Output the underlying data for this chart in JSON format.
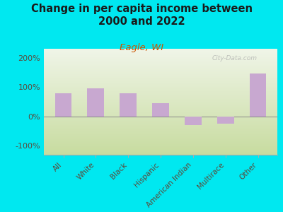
{
  "title": "Change in per capita income between\n2000 and 2022",
  "subtitle": "Eagle, WI",
  "categories": [
    "All",
    "White",
    "Black",
    "Hispanic",
    "American Indian",
    "Multirace",
    "Other"
  ],
  "values": [
    80,
    95,
    80,
    45,
    -30,
    -25,
    145
  ],
  "bar_color": "#c8a8d0",
  "background_outer": "#00e8f0",
  "background_inner_top": "#f0f5e8",
  "background_inner_bottom": "#c8dca0",
  "title_color": "#1a1a1a",
  "subtitle_color": "#cc5500",
  "tick_label_color": "#5a4a3a",
  "ylim": [
    -130,
    230
  ],
  "yticks": [
    -100,
    0,
    100,
    200
  ],
  "ytick_labels": [
    "-100%",
    "0%",
    "100%",
    "200%"
  ],
  "watermark": "City-Data.com",
  "title_fontsize": 10.5,
  "subtitle_fontsize": 9.5
}
